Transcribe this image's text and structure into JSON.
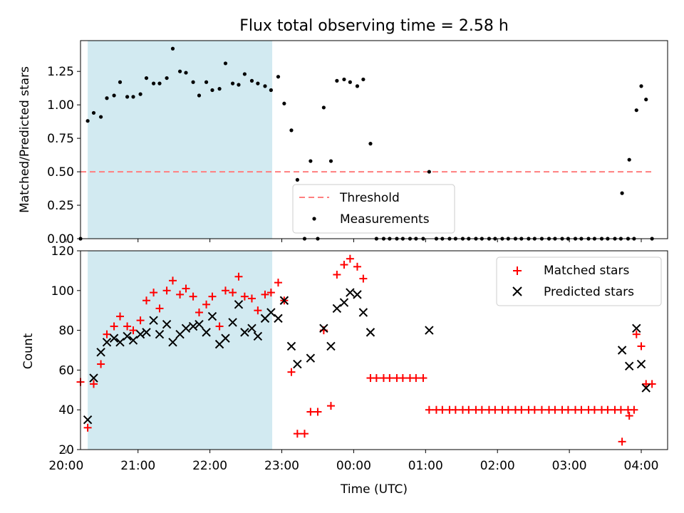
{
  "chart_data": [
    {
      "type": "scatter",
      "title": "Flux total observing time = 2.58 h",
      "xlabel": "",
      "ylabel": "Matched/Predicted stars",
      "ylim": [
        0,
        1.48
      ],
      "yticks": [
        "0.00",
        "0.25",
        "0.50",
        "0.75",
        "1.00",
        "1.25"
      ],
      "shaded_region": {
        "from": "20:18",
        "to": "22:52",
        "color": "#add8e6"
      },
      "threshold": {
        "name": "Threshold",
        "value": 0.5,
        "from": "20:12",
        "to": "04:09",
        "color": "#ff7f7f",
        "style": "dashed"
      },
      "legend": {
        "position": "lower center",
        "entries": [
          "Threshold",
          "Measurements"
        ]
      },
      "series": [
        {
          "name": "Measurements",
          "marker": "dot",
          "color": "#000000",
          "points": [
            [
              "20:12",
              0.0
            ],
            [
              "20:18",
              0.88
            ],
            [
              "20:23",
              0.94
            ],
            [
              "20:29",
              0.91
            ],
            [
              "20:34",
              1.05
            ],
            [
              "20:40",
              1.07
            ],
            [
              "20:45",
              1.17
            ],
            [
              "20:51",
              1.06
            ],
            [
              "20:56",
              1.06
            ],
            [
              "21:02",
              1.08
            ],
            [
              "21:07",
              1.2
            ],
            [
              "21:13",
              1.16
            ],
            [
              "21:18",
              1.16
            ],
            [
              "21:24",
              1.2
            ],
            [
              "21:29",
              1.42
            ],
            [
              "21:35",
              1.25
            ],
            [
              "21:40",
              1.24
            ],
            [
              "21:46",
              1.17
            ],
            [
              "21:51",
              1.07
            ],
            [
              "21:57",
              1.17
            ],
            [
              "22:02",
              1.11
            ],
            [
              "22:08",
              1.12
            ],
            [
              "22:13",
              1.31
            ],
            [
              "22:19",
              1.16
            ],
            [
              "22:24",
              1.15
            ],
            [
              "22:29",
              1.23
            ],
            [
              "22:35",
              1.18
            ],
            [
              "22:40",
              1.16
            ],
            [
              "22:46",
              1.14
            ],
            [
              "22:51",
              1.11
            ],
            [
              "22:57",
              1.21
            ],
            [
              "23:02",
              1.01
            ],
            [
              "23:08",
              0.81
            ],
            [
              "23:13",
              0.44
            ],
            [
              "23:19",
              0.0
            ],
            [
              "23:24",
              0.58
            ],
            [
              "23:30",
              0.0
            ],
            [
              "23:35",
              0.98
            ],
            [
              "23:41",
              0.58
            ],
            [
              "23:46",
              1.18
            ],
            [
              "23:52",
              1.19
            ],
            [
              "23:57",
              1.17
            ],
            [
              "00:03",
              1.14
            ],
            [
              "00:08",
              1.19
            ],
            [
              "00:14",
              0.71
            ],
            [
              "00:19",
              0.0
            ],
            [
              "00:25",
              0.0
            ],
            [
              "00:30",
              0.0
            ],
            [
              "00:36",
              0.0
            ],
            [
              "00:41",
              0.0
            ],
            [
              "00:47",
              0.0
            ],
            [
              "00:52",
              0.0
            ],
            [
              "00:58",
              0.0
            ],
            [
              "01:03",
              0.5
            ],
            [
              "01:09",
              0.0
            ],
            [
              "01:14",
              0.0
            ],
            [
              "01:20",
              0.0
            ],
            [
              "01:25",
              0.0
            ],
            [
              "01:31",
              0.0
            ],
            [
              "01:36",
              0.0
            ],
            [
              "01:42",
              0.0
            ],
            [
              "01:47",
              0.0
            ],
            [
              "01:53",
              0.0
            ],
            [
              "01:58",
              0.0
            ],
            [
              "02:04",
              0.0
            ],
            [
              "02:09",
              0.0
            ],
            [
              "02:15",
              0.0
            ],
            [
              "02:20",
              0.0
            ],
            [
              "02:26",
              0.0
            ],
            [
              "02:31",
              0.0
            ],
            [
              "02:37",
              0.0
            ],
            [
              "02:43",
              0.0
            ],
            [
              "02:48",
              0.0
            ],
            [
              "02:54",
              0.0
            ],
            [
              "02:59",
              0.0
            ],
            [
              "03:05",
              0.0
            ],
            [
              "03:10",
              0.0
            ],
            [
              "03:16",
              0.0
            ],
            [
              "03:21",
              0.0
            ],
            [
              "03:27",
              0.0
            ],
            [
              "03:32",
              0.0
            ],
            [
              "03:38",
              0.0
            ],
            [
              "03:43",
              0.0
            ],
            [
              "03:49",
              0.0
            ],
            [
              "03:54",
              0.0
            ],
            [
              "03:44",
              0.34
            ],
            [
              "03:50",
              0.59
            ],
            [
              "03:56",
              0.96
            ],
            [
              "04:00",
              1.14
            ],
            [
              "04:04",
              1.04
            ],
            [
              "04:09",
              0.0
            ]
          ]
        }
      ]
    },
    {
      "type": "scatter",
      "title": "",
      "xlabel": "Time (UTC)",
      "ylabel": "Count",
      "ylim": [
        20,
        120
      ],
      "yticks": [
        "20",
        "40",
        "60",
        "80",
        "100",
        "120"
      ],
      "xlim": [
        "20:12",
        "04:22"
      ],
      "xticks": [
        "20:00",
        "21:00",
        "22:00",
        "23:00",
        "00:00",
        "01:00",
        "02:00",
        "03:00",
        "04:00"
      ],
      "shaded_region": {
        "from": "20:18",
        "to": "22:52",
        "color": "#add8e6"
      },
      "legend": {
        "position": "upper right",
        "entries": [
          "Matched stars",
          "Predicted stars"
        ]
      },
      "series": [
        {
          "name": "Matched stars",
          "marker": "plus",
          "color": "#ff0000",
          "points": [
            [
              "20:12",
              54
            ],
            [
              "20:18",
              31
            ],
            [
              "20:23",
              53
            ],
            [
              "20:29",
              63
            ],
            [
              "20:34",
              78
            ],
            [
              "20:40",
              82
            ],
            [
              "20:45",
              87
            ],
            [
              "20:51",
              82
            ],
            [
              "20:56",
              80
            ],
            [
              "21:02",
              85
            ],
            [
              "21:07",
              95
            ],
            [
              "21:13",
              99
            ],
            [
              "21:18",
              91
            ],
            [
              "21:24",
              100
            ],
            [
              "21:29",
              105
            ],
            [
              "21:35",
              98
            ],
            [
              "21:40",
              101
            ],
            [
              "21:46",
              97
            ],
            [
              "21:51",
              89
            ],
            [
              "21:57",
              93
            ],
            [
              "22:02",
              97
            ],
            [
              "22:08",
              82
            ],
            [
              "22:13",
              100
            ],
            [
              "22:19",
              99
            ],
            [
              "22:24",
              107
            ],
            [
              "22:29",
              97
            ],
            [
              "22:35",
              96
            ],
            [
              "22:40",
              90
            ],
            [
              "22:46",
              98
            ],
            [
              "22:51",
              99
            ],
            [
              "22:57",
              104
            ],
            [
              "23:02",
              95
            ],
            [
              "23:08",
              59
            ],
            [
              "23:13",
              28
            ],
            [
              "23:19",
              28
            ],
            [
              "23:24",
              39
            ],
            [
              "23:30",
              39
            ],
            [
              "23:35",
              80
            ],
            [
              "23:41",
              42
            ],
            [
              "23:46",
              108
            ],
            [
              "23:52",
              113
            ],
            [
              "23:57",
              116
            ],
            [
              "00:03",
              112
            ],
            [
              "00:08",
              106
            ],
            [
              "00:14",
              56
            ],
            [
              "00:19",
              56
            ],
            [
              "00:25",
              56
            ],
            [
              "00:30",
              56
            ],
            [
              "00:36",
              56
            ],
            [
              "00:41",
              56
            ],
            [
              "00:47",
              56
            ],
            [
              "00:52",
              56
            ],
            [
              "00:58",
              56
            ],
            [
              "01:03",
              40
            ],
            [
              "01:09",
              40
            ],
            [
              "01:14",
              40
            ],
            [
              "01:20",
              40
            ],
            [
              "01:25",
              40
            ],
            [
              "01:31",
              40
            ],
            [
              "01:36",
              40
            ],
            [
              "01:42",
              40
            ],
            [
              "01:47",
              40
            ],
            [
              "01:53",
              40
            ],
            [
              "01:58",
              40
            ],
            [
              "02:04",
              40
            ],
            [
              "02:09",
              40
            ],
            [
              "02:15",
              40
            ],
            [
              "02:20",
              40
            ],
            [
              "02:26",
              40
            ],
            [
              "02:31",
              40
            ],
            [
              "02:37",
              40
            ],
            [
              "02:43",
              40
            ],
            [
              "02:48",
              40
            ],
            [
              "02:54",
              40
            ],
            [
              "02:59",
              40
            ],
            [
              "03:05",
              40
            ],
            [
              "03:10",
              40
            ],
            [
              "03:16",
              40
            ],
            [
              "03:21",
              40
            ],
            [
              "03:27",
              40
            ],
            [
              "03:32",
              40
            ],
            [
              "03:38",
              40
            ],
            [
              "03:43",
              40
            ],
            [
              "03:49",
              40
            ],
            [
              "03:54",
              40
            ],
            [
              "03:44",
              24
            ],
            [
              "03:50",
              37
            ],
            [
              "03:56",
              78
            ],
            [
              "04:00",
              72
            ],
            [
              "04:04",
              53
            ],
            [
              "04:09",
              53
            ]
          ]
        },
        {
          "name": "Predicted stars",
          "marker": "x",
          "color": "#000000",
          "points": [
            [
              "20:18",
              35
            ],
            [
              "20:23",
              56
            ],
            [
              "20:29",
              69
            ],
            [
              "20:34",
              74
            ],
            [
              "20:40",
              76
            ],
            [
              "20:45",
              74
            ],
            [
              "20:51",
              77
            ],
            [
              "20:56",
              75
            ],
            [
              "21:02",
              78
            ],
            [
              "21:07",
              79
            ],
            [
              "21:13",
              85
            ],
            [
              "21:18",
              78
            ],
            [
              "21:24",
              83
            ],
            [
              "21:29",
              74
            ],
            [
              "21:35",
              78
            ],
            [
              "21:40",
              81
            ],
            [
              "21:46",
              82
            ],
            [
              "21:51",
              83
            ],
            [
              "21:57",
              79
            ],
            [
              "22:02",
              87
            ],
            [
              "22:08",
              73
            ],
            [
              "22:13",
              76
            ],
            [
              "22:19",
              84
            ],
            [
              "22:24",
              93
            ],
            [
              "22:29",
              79
            ],
            [
              "22:35",
              81
            ],
            [
              "22:40",
              77
            ],
            [
              "22:46",
              86
            ],
            [
              "22:51",
              89
            ],
            [
              "22:57",
              86
            ],
            [
              "23:02",
              95
            ],
            [
              "23:08",
              72
            ],
            [
              "23:13",
              63
            ],
            [
              "23:24",
              66
            ],
            [
              "23:35",
              81
            ],
            [
              "23:41",
              72
            ],
            [
              "23:46",
              91
            ],
            [
              "23:52",
              94
            ],
            [
              "23:57",
              99
            ],
            [
              "00:03",
              98
            ],
            [
              "00:08",
              89
            ],
            [
              "00:14",
              79
            ],
            [
              "01:03",
              80
            ],
            [
              "03:44",
              70
            ],
            [
              "03:50",
              62
            ],
            [
              "03:56",
              81
            ],
            [
              "04:00",
              63
            ],
            [
              "04:04",
              51
            ]
          ]
        }
      ]
    }
  ]
}
